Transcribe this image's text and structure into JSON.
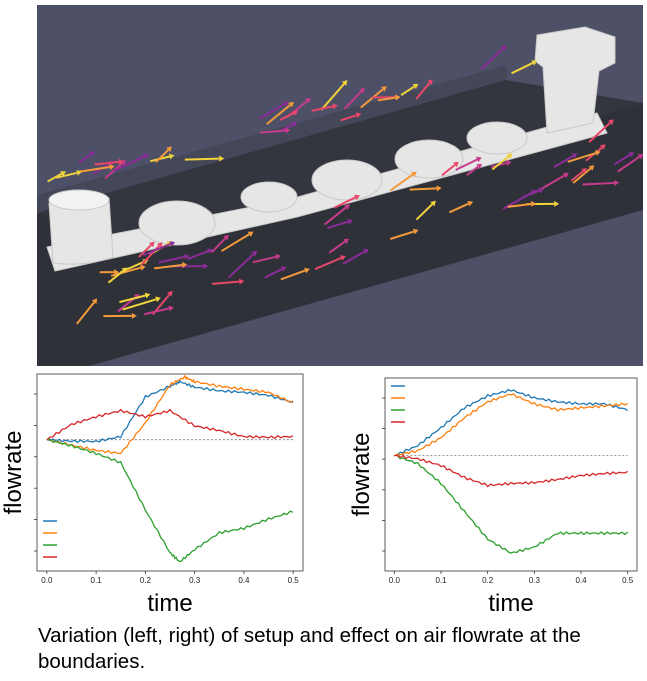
{
  "caption": "Variation (left, right) of setup and effect on air flowrate at the boundaries.",
  "render_view": {
    "background": "#4d5066",
    "floor_color": "#2f3138",
    "model_color": "#e6e6e6",
    "arrow_colors": [
      "#f39a3c",
      "#e8476a",
      "#c63b8c",
      "#8c2b9a",
      "#f0d23c"
    ]
  },
  "chart_data": [
    {
      "type": "line",
      "xlabel": "time",
      "ylabel": "flowrate",
      "xlim": [
        -0.02,
        0.52
      ],
      "ylim": [
        -4.3,
        2.15
      ],
      "x_ticks": [
        "0.0",
        "0.1",
        "0.2",
        "0.3",
        "0.4",
        "0.5"
      ],
      "reference_line": 0,
      "legend": "bottom-left",
      "series": [
        {
          "color": "#1f77b4",
          "x": [
            0,
            0.05,
            0.1,
            0.15,
            0.2,
            0.25,
            0.27,
            0.3,
            0.35,
            0.4,
            0.45,
            0.5
          ],
          "y": [
            0,
            -0.05,
            -0.06,
            0.1,
            1.4,
            1.75,
            1.9,
            1.72,
            1.6,
            1.55,
            1.45,
            1.22
          ]
        },
        {
          "color": "#ff7f0e",
          "x": [
            0,
            0.05,
            0.1,
            0.15,
            0.2,
            0.25,
            0.28,
            0.3,
            0.35,
            0.4,
            0.45,
            0.5
          ],
          "y": [
            0,
            -0.18,
            -0.35,
            -0.45,
            0.55,
            1.8,
            2.05,
            1.9,
            1.75,
            1.65,
            1.55,
            1.2
          ]
        },
        {
          "color": "#2ca02c",
          "x": [
            0,
            0.05,
            0.1,
            0.15,
            0.2,
            0.25,
            0.27,
            0.3,
            0.35,
            0.4,
            0.45,
            0.5
          ],
          "y": [
            0,
            -0.2,
            -0.45,
            -0.75,
            -2.3,
            -3.7,
            -4.0,
            -3.6,
            -3.05,
            -2.9,
            -2.6,
            -2.35
          ]
        },
        {
          "color": "#d62728",
          "x": [
            0,
            0.05,
            0.1,
            0.15,
            0.2,
            0.25,
            0.3,
            0.35,
            0.4,
            0.45,
            0.5
          ],
          "y": [
            0,
            0.5,
            0.75,
            0.95,
            0.75,
            0.95,
            0.45,
            0.3,
            0.1,
            0.08,
            0.1
          ]
        }
      ]
    },
    {
      "type": "line",
      "xlabel": "time",
      "ylabel": "flowrate",
      "xlim": [
        -0.02,
        0.52
      ],
      "ylim": [
        -2.9,
        1.95
      ],
      "x_ticks": [
        "0.0",
        "0.1",
        "0.2",
        "0.3",
        "0.4",
        "0.5"
      ],
      "reference_line": 0,
      "legend": "top-left",
      "series": [
        {
          "color": "#1f77b4",
          "x": [
            0,
            0.05,
            0.1,
            0.15,
            0.2,
            0.25,
            0.3,
            0.35,
            0.4,
            0.45,
            0.5
          ],
          "y": [
            0,
            0.25,
            0.7,
            1.2,
            1.5,
            1.65,
            1.45,
            1.35,
            1.3,
            1.3,
            1.15
          ]
        },
        {
          "color": "#ff7f0e",
          "x": [
            0,
            0.05,
            0.1,
            0.15,
            0.2,
            0.25,
            0.3,
            0.35,
            0.4,
            0.45,
            0.5
          ],
          "y": [
            0,
            0.12,
            0.45,
            0.95,
            1.35,
            1.55,
            1.3,
            1.15,
            1.2,
            1.25,
            1.3
          ]
        },
        {
          "color": "#2ca02c",
          "x": [
            0,
            0.05,
            0.1,
            0.15,
            0.2,
            0.25,
            0.3,
            0.35,
            0.4,
            0.45,
            0.5
          ],
          "y": [
            0,
            -0.2,
            -0.7,
            -1.4,
            -2.1,
            -2.45,
            -2.3,
            -1.95,
            -1.95,
            -1.95,
            -1.95
          ]
        },
        {
          "color": "#d62728",
          "x": [
            0,
            0.05,
            0.1,
            0.15,
            0.2,
            0.25,
            0.3,
            0.35,
            0.4,
            0.45,
            0.5
          ],
          "y": [
            0,
            -0.08,
            -0.25,
            -0.55,
            -0.75,
            -0.7,
            -0.68,
            -0.6,
            -0.5,
            -0.45,
            -0.42
          ]
        }
      ]
    }
  ]
}
